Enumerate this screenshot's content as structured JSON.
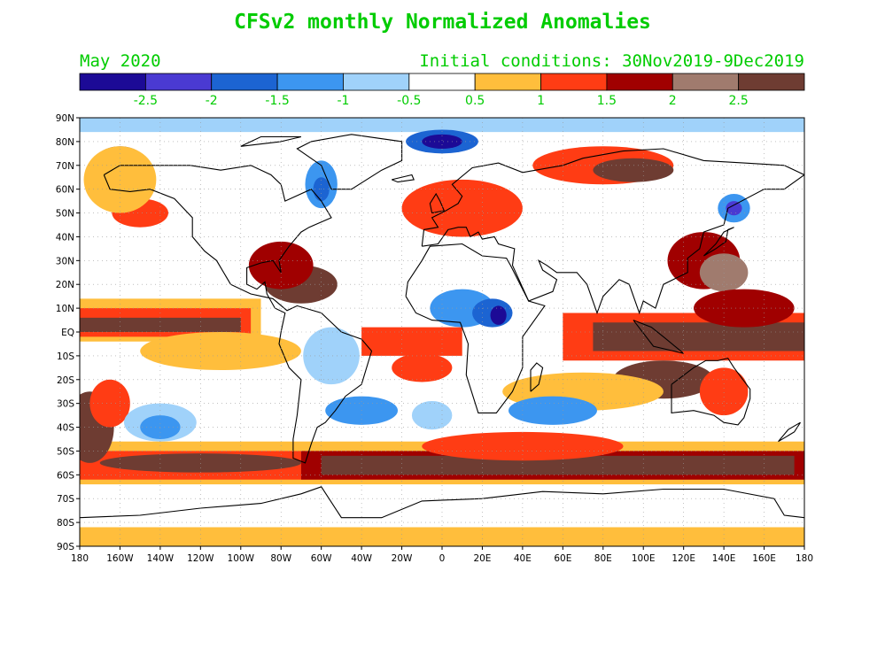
{
  "title": "CFSv2 monthly Normalized Anomalies",
  "subtitle_left": "May 2020",
  "subtitle_right": "Initial conditions: 30Nov2019-9Dec2019",
  "text_color": "#00cc00",
  "colorbar": {
    "colors": [
      "#1c0a96",
      "#4a3ad2",
      "#1c64d2",
      "#3c96f0",
      "#a0d2fa",
      "#ffffff",
      "#ffbe3c",
      "#ff3c14",
      "#a00000",
      "#a07b6e",
      "#6e3c32"
    ],
    "labels": [
      "-2.5",
      "-2",
      "-1.5",
      "-1",
      "-0.5",
      "0.5",
      "1",
      "1.5",
      "2",
      "2.5"
    ]
  },
  "map": {
    "lat_labels": [
      "90N",
      "80N",
      "70N",
      "60N",
      "50N",
      "40N",
      "30N",
      "20N",
      "10N",
      "EQ",
      "10S",
      "20S",
      "30S",
      "40S",
      "50S",
      "60S",
      "70S",
      "80S",
      "90S"
    ],
    "lon_labels": [
      "180",
      "160W",
      "140W",
      "120W",
      "100W",
      "80W",
      "60W",
      "40W",
      "20W",
      "0",
      "20E",
      "40E",
      "60E",
      "80E",
      "100E",
      "120E",
      "140E",
      "160E",
      "180"
    ]
  }
}
